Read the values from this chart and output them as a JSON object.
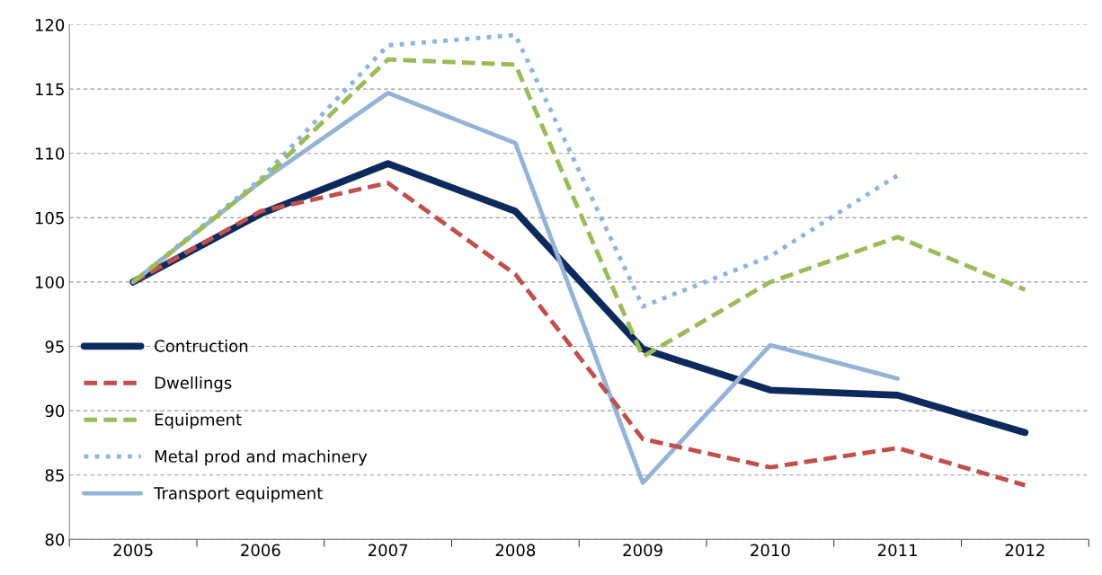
{
  "chart_data": {
    "type": "line",
    "categories": [
      "2005",
      "2006",
      "2007",
      "2008",
      "2009",
      "2010",
      "2011",
      "2012"
    ],
    "series": [
      {
        "name": "Contruction",
        "color": "#0d2a5c",
        "line_style": "solid",
        "values": [
          100,
          105.3,
          109.2,
          105.5,
          94.8,
          91.6,
          91.2,
          88.3
        ]
      },
      {
        "name": "Dwellings",
        "color": "#c0504d",
        "line_style": "dashed",
        "values": [
          100,
          105.5,
          107.7,
          100.6,
          87.8,
          85.6,
          87.1,
          84.2
        ]
      },
      {
        "name": "Equipment",
        "color": "#9bbb59",
        "line_style": "dashed",
        "values": [
          100,
          107.8,
          117.3,
          116.9,
          94.2,
          100,
          103.5,
          99.4
        ]
      },
      {
        "name": "Metal prod and machinery",
        "color": "#8db4e2",
        "line_style": "dotted",
        "values": [
          100,
          108,
          118.4,
          119.2,
          98.1,
          102,
          108.3,
          null
        ]
      },
      {
        "name": "Transport equipment",
        "color": "#95b3d7",
        "line_style": "solid",
        "values": [
          100,
          107.8,
          114.7,
          110.8,
          84.4,
          95.1,
          92.5,
          null
        ]
      }
    ],
    "ylim": [
      80,
      120
    ],
    "yticks": [
      80,
      85,
      90,
      95,
      100,
      105,
      110,
      115,
      120
    ],
    "grid": "y",
    "legend": "center left",
    "marker": "none"
  }
}
